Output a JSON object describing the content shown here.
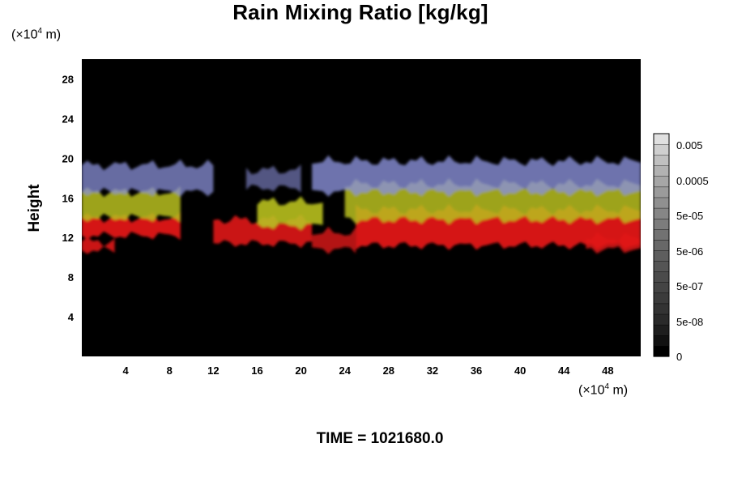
{
  "chart_data": {
    "type": "heatmap",
    "title": "Rain Mixing Ratio [kg/kg]",
    "ylabel": "Height",
    "xlabel": "",
    "x_unit": {
      "prefix": "(×10",
      "exp": "4",
      "suffix": " m)"
    },
    "y_unit": {
      "prefix": "(×10",
      "exp": "4",
      "suffix": " m)"
    },
    "xlim": [
      0,
      51
    ],
    "ylim": [
      0,
      30
    ],
    "x_ticks": [
      4,
      8,
      12,
      16,
      20,
      24,
      28,
      32,
      36,
      40,
      44,
      48
    ],
    "y_ticks": [
      4,
      8,
      12,
      16,
      20,
      24,
      28
    ],
    "grid": false,
    "background_color": "#000000",
    "colorbar": {
      "labels": [
        "0.005",
        "0.0005",
        "5e-05",
        "5e-06",
        "5e-07",
        "5e-08",
        "0"
      ],
      "min": 0,
      "max": 0.005,
      "scale": "log",
      "colors": [
        "#000000",
        "#111111",
        "#1e1e1e",
        "#2a2a2a",
        "#333333",
        "#3b3b3b",
        "#444444",
        "#4b4b4b",
        "#555555",
        "#5e5e5e",
        "#686868",
        "#727272",
        "#7c7c7c",
        "#868686",
        "#909090",
        "#9b9b9b",
        "#a6a6a6",
        "#b2b2b2",
        "#c0c0c0",
        "#cfcfcf",
        "#e0e0e0"
      ]
    },
    "layers": [
      {
        "name": "red",
        "color": "#e01818",
        "bottom_km": 11.5,
        "top_km": 14.5
      },
      {
        "name": "yellow-green",
        "color": "#b8c020",
        "bottom_km": 14.0,
        "top_km": 17.0
      },
      {
        "name": "blue-white",
        "color": "#8a90d8",
        "bottom_km": 16.0,
        "top_km": 19.5
      }
    ]
  },
  "time_label": "TIME = 1021680.0"
}
